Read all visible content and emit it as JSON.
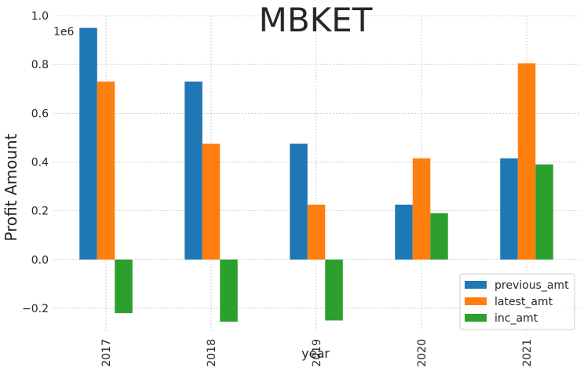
{
  "chart_data": {
    "type": "bar",
    "title": "MBKET",
    "xlabel": "year",
    "ylabel": "Profit Amount",
    "y_offset_label": "1e6",
    "categories": [
      "2017",
      "2018",
      "2019",
      "2020",
      "2021"
    ],
    "series": [
      {
        "name": "previous_amt",
        "color": "#1f77b4",
        "values": [
          950000,
          730000,
          475000,
          225000,
          415000
        ]
      },
      {
        "name": "latest_amt",
        "color": "#ff7f0e",
        "values": [
          730000,
          475000,
          225000,
          415000,
          805000
        ]
      },
      {
        "name": "inc_amt",
        "color": "#2ca02c",
        "values": [
          -220000,
          -255000,
          -250000,
          190000,
          390000
        ]
      }
    ],
    "ylim": [
      -0.3,
      1.0
    ],
    "y_scale": 1000000,
    "yticks": [
      1.0,
      0.8,
      0.6,
      0.4,
      0.2,
      0.0,
      -0.2
    ],
    "ytick_labels": [
      "1.0",
      "0.8",
      "0.6",
      "0.4",
      "0.2",
      "0.0",
      "−0.2"
    ],
    "grid": true,
    "legend_position": "bottom-right"
  }
}
